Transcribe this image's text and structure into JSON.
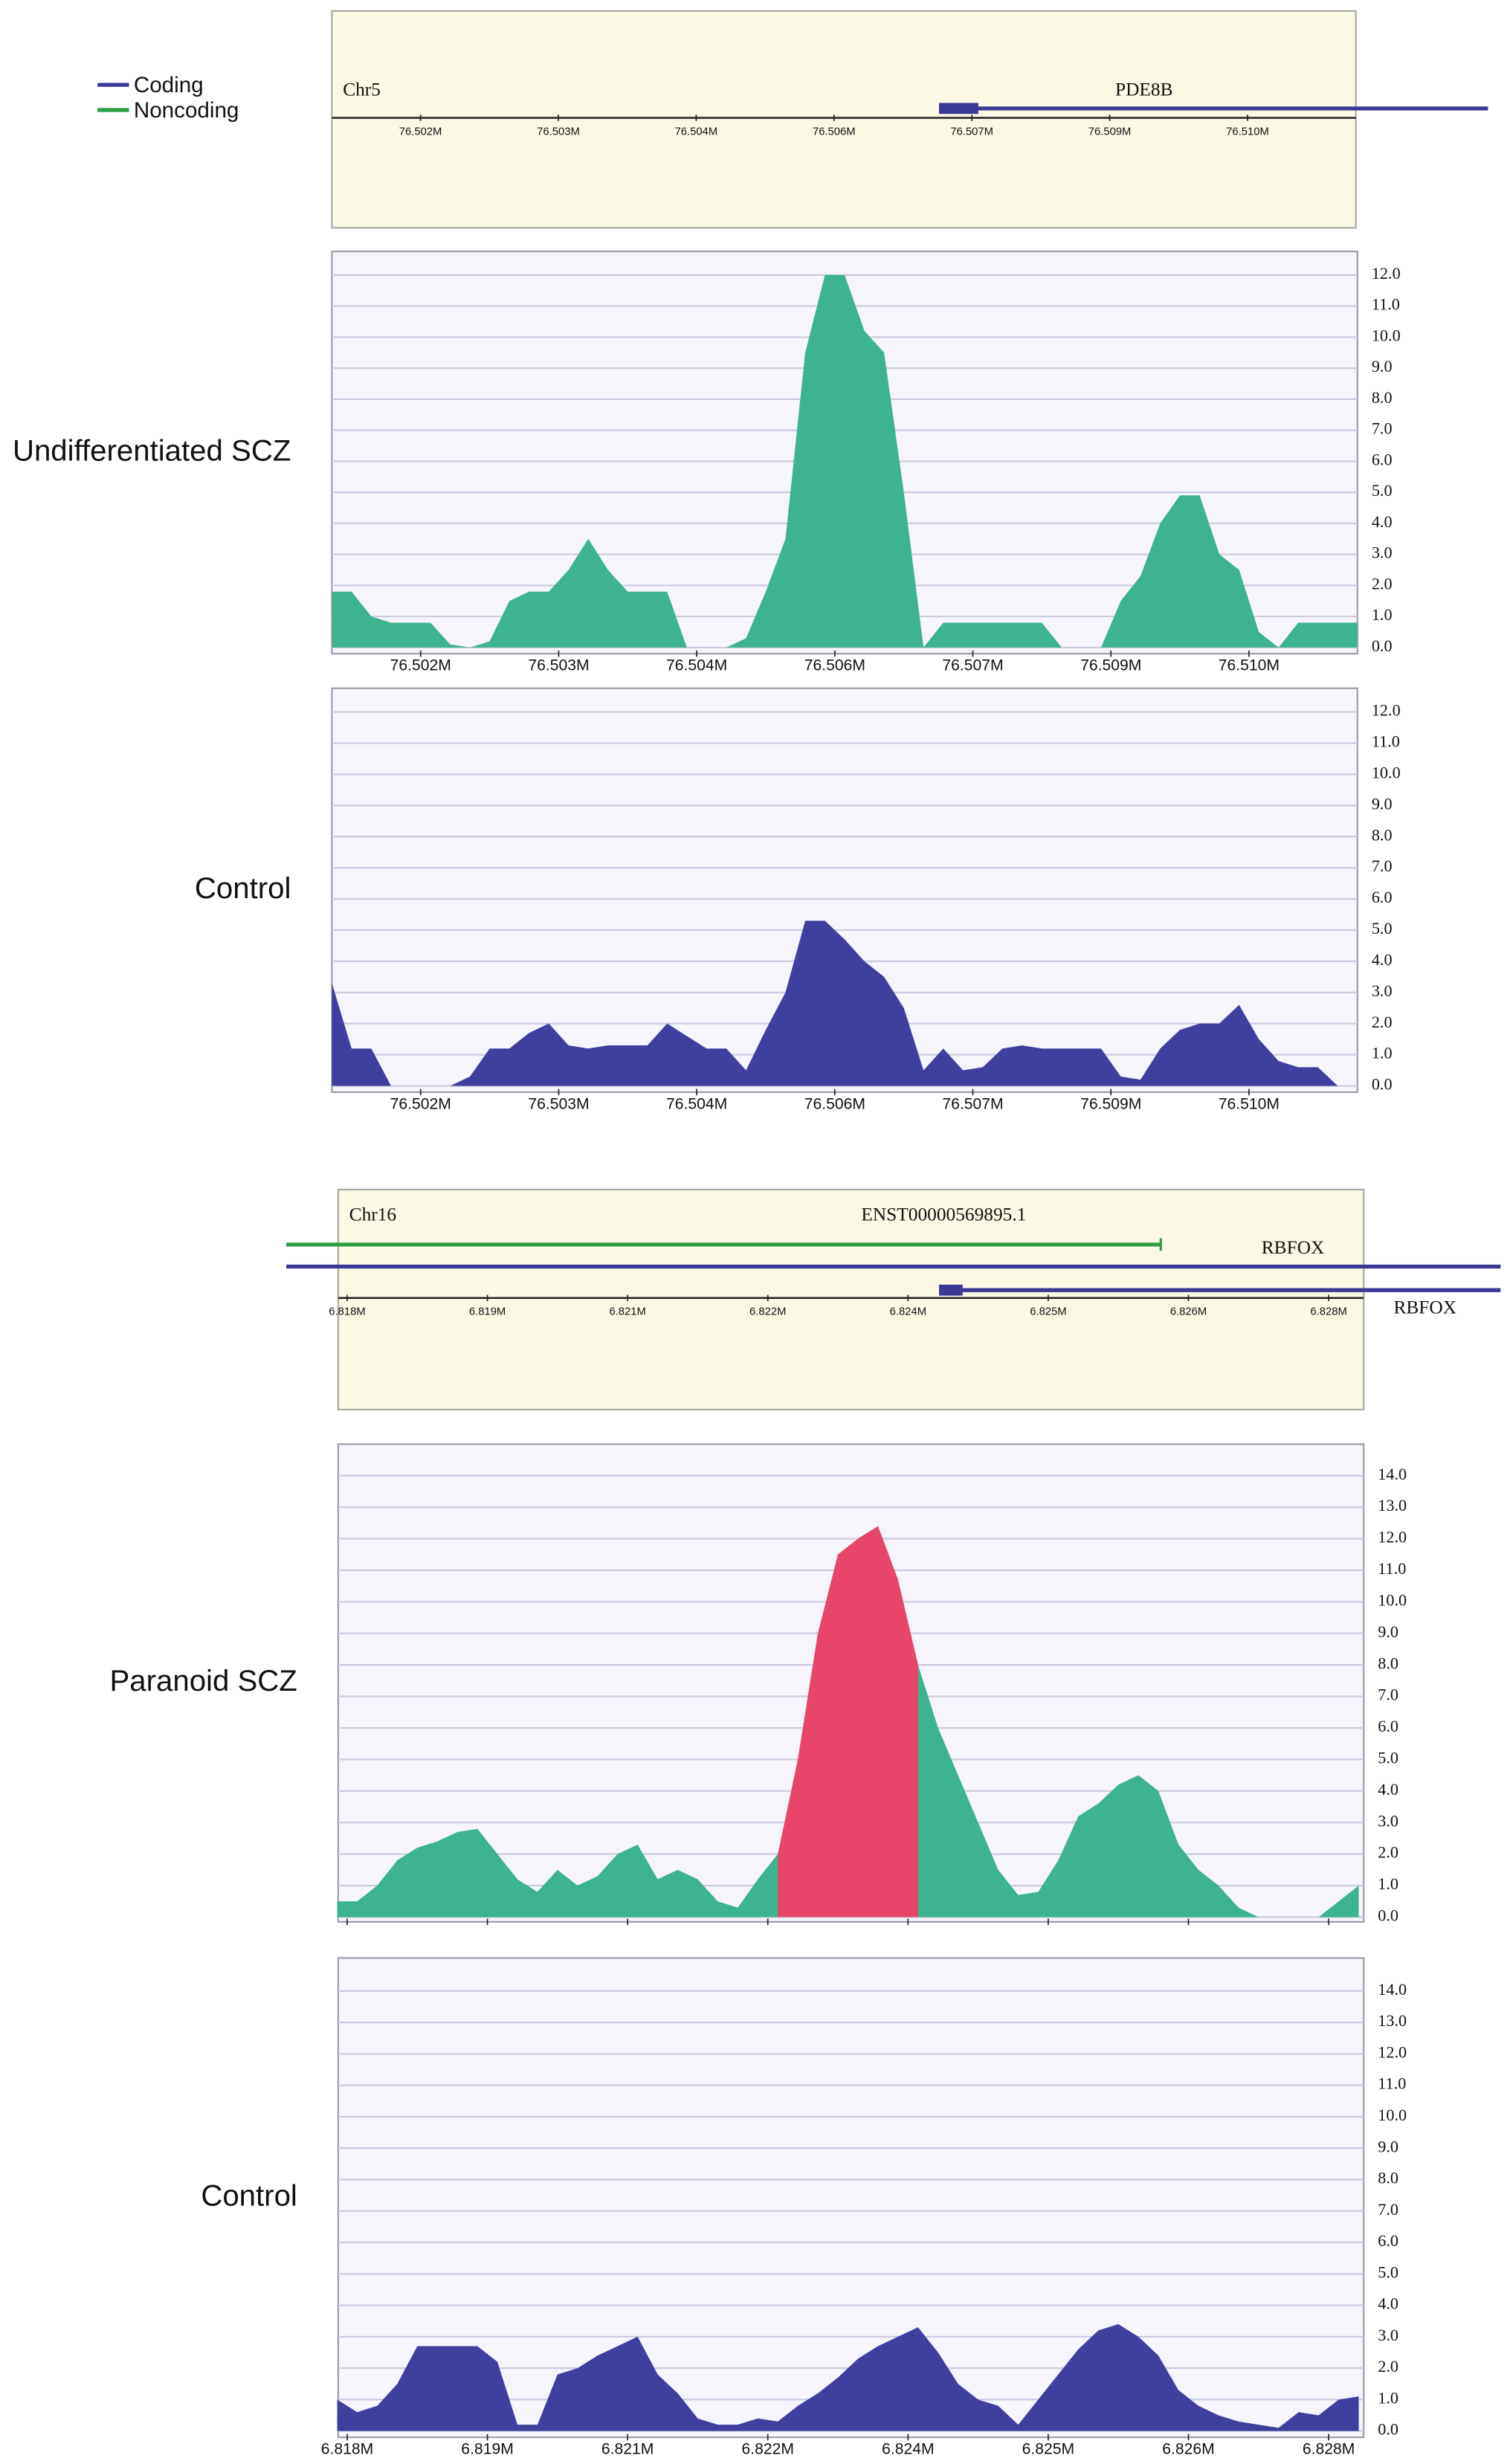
{
  "chart_data": [
    {
      "type": "track",
      "chromosome": "Chr5",
      "genes": [
        "PDE8B"
      ],
      "legend": [
        {
          "name": "Coding",
          "color": "#3a3a96"
        },
        {
          "name": "Noncoding",
          "color": "#2e9e45"
        }
      ],
      "xlim": [
        76.5007,
        76.5111
      ],
      "xticks": [
        {
          "value": 76.5016,
          "label": "76.502M"
        },
        {
          "value": 76.503,
          "label": "76.503M"
        },
        {
          "value": 76.5044,
          "label": "76.504M"
        },
        {
          "value": 76.5058,
          "label": "76.506M"
        },
        {
          "value": 76.5072,
          "label": "76.507M"
        },
        {
          "value": 76.5086,
          "label": "76.509M"
        },
        {
          "value": 76.51,
          "label": "76.510M"
        }
      ]
    },
    {
      "type": "area",
      "title": "Undifferentiated SCZ",
      "color": "#3db390",
      "grid": true,
      "x": [
        76.5007,
        76.5009,
        76.5011,
        76.5013,
        76.5015,
        76.5017,
        76.5019,
        76.5021,
        76.5023,
        76.5025,
        76.5027,
        76.5029,
        76.5031,
        76.5033,
        76.5035,
        76.5037,
        76.5039,
        76.5041,
        76.5043,
        76.5045,
        76.5047,
        76.5049,
        76.5051,
        76.5053,
        76.5055,
        76.5057,
        76.5059,
        76.5061,
        76.5063,
        76.5065,
        76.5067,
        76.5069,
        76.5071,
        76.5073,
        76.5075,
        76.5077,
        76.5079,
        76.5081,
        76.5083,
        76.5085,
        76.5087,
        76.5089,
        76.5091,
        76.5093,
        76.5095,
        76.5097,
        76.5099,
        76.5101,
        76.5103,
        76.5105,
        76.5107,
        76.5109,
        76.5111
      ],
      "values": [
        1.8,
        1.8,
        1,
        0.8,
        0.8,
        0.8,
        0.1,
        0,
        0.2,
        1.5,
        1.8,
        1.8,
        2.5,
        3.5,
        2.5,
        1.8,
        1.8,
        1.8,
        0,
        0,
        0,
        0.3,
        1.8,
        3.5,
        9.5,
        12,
        12,
        10.2,
        9.5,
        5,
        0,
        0.8,
        0.8,
        0.8,
        0.8,
        0.8,
        0.8,
        0,
        0,
        0,
        1.5,
        2.3,
        4,
        4.9,
        4.9,
        3,
        2.5,
        0.5,
        0,
        0.8,
        0.8,
        0.8,
        0.8
      ],
      "xlim": [
        76.5007,
        76.5111
      ],
      "ylim": [
        -0.2,
        12.76
      ],
      "xticks": [
        {
          "value": 76.5016,
          "label": "76.502M"
        },
        {
          "value": 76.503,
          "label": "76.503M"
        },
        {
          "value": 76.5044,
          "label": "76.504M"
        },
        {
          "value": 76.5058,
          "label": "76.506M"
        },
        {
          "value": 76.5072,
          "label": "76.507M"
        },
        {
          "value": 76.5086,
          "label": "76.509M"
        },
        {
          "value": 76.51,
          "label": "76.510M"
        }
      ],
      "yticks": [
        {
          "value": 0,
          "label": "0.0"
        },
        {
          "value": 1,
          "label": "1.0"
        },
        {
          "value": 2,
          "label": "2.0"
        },
        {
          "value": 3,
          "label": "3.0"
        },
        {
          "value": 4,
          "label": "4.0"
        },
        {
          "value": 5,
          "label": "5.0"
        },
        {
          "value": 6,
          "label": "6.0"
        },
        {
          "value": 7,
          "label": "7.0"
        },
        {
          "value": 8,
          "label": "8.0"
        },
        {
          "value": 9,
          "label": "9.0"
        },
        {
          "value": 10,
          "label": "10.0"
        },
        {
          "value": 11,
          "label": "11.0"
        },
        {
          "value": 12,
          "label": "12.0"
        }
      ]
    },
    {
      "type": "area",
      "title": "Control",
      "color": "#3f3f9e",
      "grid": true,
      "x": [
        76.5007,
        76.5009,
        76.5011,
        76.5013,
        76.5015,
        76.5017,
        76.5019,
        76.5021,
        76.5023,
        76.5025,
        76.5027,
        76.5029,
        76.5031,
        76.5033,
        76.5035,
        76.5037,
        76.5039,
        76.5041,
        76.5043,
        76.5045,
        76.5047,
        76.5049,
        76.5051,
        76.5053,
        76.5055,
        76.5057,
        76.5059,
        76.5061,
        76.5063,
        76.5065,
        76.5067,
        76.5069,
        76.5071,
        76.5073,
        76.5075,
        76.5077,
        76.5079,
        76.5081,
        76.5083,
        76.5085,
        76.5087,
        76.5089,
        76.5091,
        76.5093,
        76.5095,
        76.5097,
        76.5099,
        76.5101,
        76.5103,
        76.5105,
        76.5107,
        76.5109,
        76.5111
      ],
      "values": [
        3.3,
        1.2,
        1.2,
        0,
        0,
        0,
        0,
        0.3,
        1.2,
        1.2,
        1.7,
        2,
        1.3,
        1.2,
        1.3,
        1.3,
        1.3,
        2,
        1.6,
        1.2,
        1.2,
        0.5,
        1.8,
        3,
        5.3,
        5.3,
        4.7,
        4,
        3.5,
        2.5,
        0.5,
        1.2,
        0.5,
        0.6,
        1.2,
        1.3,
        1.2,
        1.2,
        1.2,
        1.2,
        0.3,
        0.2,
        1.2,
        1.8,
        2,
        2,
        2.6,
        1.5,
        0.8,
        0.6,
        0.6,
        0,
        0
      ],
      "xlim": [
        76.5007,
        76.5111
      ],
      "ylim": [
        -0.2,
        12.76
      ],
      "xticks": [
        {
          "value": 76.5016,
          "label": "76.502M"
        },
        {
          "value": 76.503,
          "label": "76.503M"
        },
        {
          "value": 76.5044,
          "label": "76.504M"
        },
        {
          "value": 76.5058,
          "label": "76.506M"
        },
        {
          "value": 76.5072,
          "label": "76.507M"
        },
        {
          "value": 76.5086,
          "label": "76.509M"
        },
        {
          "value": 76.51,
          "label": "76.510M"
        }
      ],
      "yticks": [
        {
          "value": 0,
          "label": "0.0"
        },
        {
          "value": 1,
          "label": "1.0"
        },
        {
          "value": 2,
          "label": "2.0"
        },
        {
          "value": 3,
          "label": "3.0"
        },
        {
          "value": 4,
          "label": "4.0"
        },
        {
          "value": 5,
          "label": "5.0"
        },
        {
          "value": 6,
          "label": "6.0"
        },
        {
          "value": 7,
          "label": "7.0"
        },
        {
          "value": 8,
          "label": "8.0"
        },
        {
          "value": 9,
          "label": "9.0"
        },
        {
          "value": 10,
          "label": "10.0"
        },
        {
          "value": 11,
          "label": "11.0"
        },
        {
          "value": 12,
          "label": "12.0"
        }
      ]
    },
    {
      "type": "track",
      "chromosome": "Chr16",
      "genes": [
        "ENST00000569895.1",
        "RBFOX",
        "RBFOX"
      ],
      "xlim": [
        6.81791,
        6.82815
      ],
      "xticks": [
        {
          "value": 6.818,
          "label": "6.818M"
        },
        {
          "value": 6.8194,
          "label": "6.819M"
        },
        {
          "value": 6.8208,
          "label": "6.821M"
        },
        {
          "value": 6.8222,
          "label": "6.822M"
        },
        {
          "value": 6.8236,
          "label": "6.824M"
        },
        {
          "value": 6.825,
          "label": "6.825M"
        },
        {
          "value": 6.8264,
          "label": "6.826M"
        },
        {
          "value": 6.8278,
          "label": "6.828M"
        }
      ]
    },
    {
      "type": "area",
      "title": "Paranoid SCZ",
      "color": "#3db390",
      "grid": true,
      "highlight_range": [
        6.8223,
        6.8237
      ],
      "highlight_color": "#e8456a",
      "x": [
        6.8179,
        6.8181,
        6.8183,
        6.8185,
        6.8187,
        6.8189,
        6.8191,
        6.8193,
        6.8195,
        6.8197,
        6.8199,
        6.8201,
        6.8203,
        6.8205,
        6.8207,
        6.8209,
        6.8211,
        6.8213,
        6.8215,
        6.8217,
        6.8219,
        6.8221,
        6.8223,
        6.8225,
        6.8227,
        6.8229,
        6.8231,
        6.8233,
        6.8235,
        6.8237,
        6.8239,
        6.8241,
        6.8243,
        6.8245,
        6.8247,
        6.8249,
        6.8251,
        6.8253,
        6.8255,
        6.8257,
        6.8259,
        6.8261,
        6.8263,
        6.8265,
        6.8267,
        6.8269,
        6.8271,
        6.8273,
        6.8275,
        6.8277,
        6.8279,
        6.8281
      ],
      "values": [
        0.5,
        0.5,
        1,
        1.8,
        2.2,
        2.4,
        2.7,
        2.8,
        2,
        1.2,
        0.8,
        1.5,
        1,
        1.3,
        2,
        2.3,
        1.2,
        1.5,
        1.2,
        0.5,
        0.3,
        1.2,
        2,
        5,
        9,
        11.5,
        12,
        12.4,
        10.7,
        8,
        6,
        4.5,
        3,
        1.5,
        0.7,
        0.8,
        1.8,
        3.2,
        3.6,
        4.2,
        4.5,
        4,
        2.3,
        1.5,
        1,
        0.3,
        0,
        0,
        0,
        0,
        0.5,
        1
      ],
      "xlim": [
        6.81791,
        6.82815
      ],
      "ylim": [
        -0.15,
        15
      ],
      "xticks": [
        6.818,
        6.8194,
        6.8208,
        6.8222,
        6.8236,
        6.825,
        6.8264,
        6.8278
      ],
      "yticks": [
        {
          "value": 0,
          "label": "0.0"
        },
        {
          "value": 1,
          "label": "1.0"
        },
        {
          "value": 2,
          "label": "2.0"
        },
        {
          "value": 3,
          "label": "3.0"
        },
        {
          "value": 4,
          "label": "4.0"
        },
        {
          "value": 5,
          "label": "5.0"
        },
        {
          "value": 6,
          "label": "6.0"
        },
        {
          "value": 7,
          "label": "7.0"
        },
        {
          "value": 8,
          "label": "8.0"
        },
        {
          "value": 9,
          "label": "9.0"
        },
        {
          "value": 10,
          "label": "10.0"
        },
        {
          "value": 11,
          "label": "11.0"
        },
        {
          "value": 12,
          "label": "12.0"
        },
        {
          "value": 13,
          "label": "13.0"
        },
        {
          "value": 14,
          "label": "14.0"
        }
      ]
    },
    {
      "type": "area",
      "title": "Control",
      "color": "#3f3f9e",
      "grid": true,
      "x": [
        6.8179,
        6.8181,
        6.8183,
        6.8185,
        6.8187,
        6.8189,
        6.8191,
        6.8193,
        6.8195,
        6.8197,
        6.8199,
        6.8201,
        6.8203,
        6.8205,
        6.8207,
        6.8209,
        6.8211,
        6.8213,
        6.8215,
        6.8217,
        6.8219,
        6.8221,
        6.8223,
        6.8225,
        6.8227,
        6.8229,
        6.8231,
        6.8233,
        6.8235,
        6.8237,
        6.8239,
        6.8241,
        6.8243,
        6.8245,
        6.8247,
        6.8249,
        6.8251,
        6.8253,
        6.8255,
        6.8257,
        6.8259,
        6.8261,
        6.8263,
        6.8265,
        6.8267,
        6.8269,
        6.8271,
        6.8273,
        6.8275,
        6.8277,
        6.8279,
        6.8281
      ],
      "values": [
        1,
        0.6,
        0.8,
        1.5,
        2.7,
        2.7,
        2.7,
        2.7,
        2.2,
        0.2,
        0.2,
        1.8,
        2,
        2.4,
        2.7,
        3,
        1.8,
        1.2,
        0.4,
        0.2,
        0.2,
        0.4,
        0.3,
        0.8,
        1.2,
        1.7,
        2.3,
        2.7,
        3,
        3.3,
        2.5,
        1.5,
        1,
        0.8,
        0.2,
        1,
        1.8,
        2.6,
        3.2,
        3.4,
        3,
        2.4,
        1.3,
        0.8,
        0.5,
        0.3,
        0.2,
        0.1,
        0.6,
        0.5,
        1,
        1.1
      ],
      "xlim": [
        6.81791,
        6.82815
      ],
      "ylim": [
        -0.2,
        15.05
      ],
      "xticks": [
        {
          "value": 6.818,
          "label": "6.818M"
        },
        {
          "value": 6.8194,
          "label": "6.819M"
        },
        {
          "value": 6.8208,
          "label": "6.821M"
        },
        {
          "value": 6.8222,
          "label": "6.822M"
        },
        {
          "value": 6.8236,
          "label": "6.824M"
        },
        {
          "value": 6.825,
          "label": "6.825M"
        },
        {
          "value": 6.8264,
          "label": "6.826M"
        },
        {
          "value": 6.8278,
          "label": "6.828M"
        }
      ],
      "yticks": [
        {
          "value": 0,
          "label": "0.0"
        },
        {
          "value": 1,
          "label": "1.0"
        },
        {
          "value": 2,
          "label": "2.0"
        },
        {
          "value": 3,
          "label": "3.0"
        },
        {
          "value": 4,
          "label": "4.0"
        },
        {
          "value": 5,
          "label": "5.0"
        },
        {
          "value": 6,
          "label": "6.0"
        },
        {
          "value": 7,
          "label": "7.0"
        },
        {
          "value": 8,
          "label": "8.0"
        },
        {
          "value": 9,
          "label": "9.0"
        },
        {
          "value": 10,
          "label": "10.0"
        },
        {
          "value": 11,
          "label": "11.0"
        },
        {
          "value": 12,
          "label": "12.0"
        },
        {
          "value": 13,
          "label": "13.0"
        },
        {
          "value": 14,
          "label": "14.0"
        }
      ]
    }
  ]
}
